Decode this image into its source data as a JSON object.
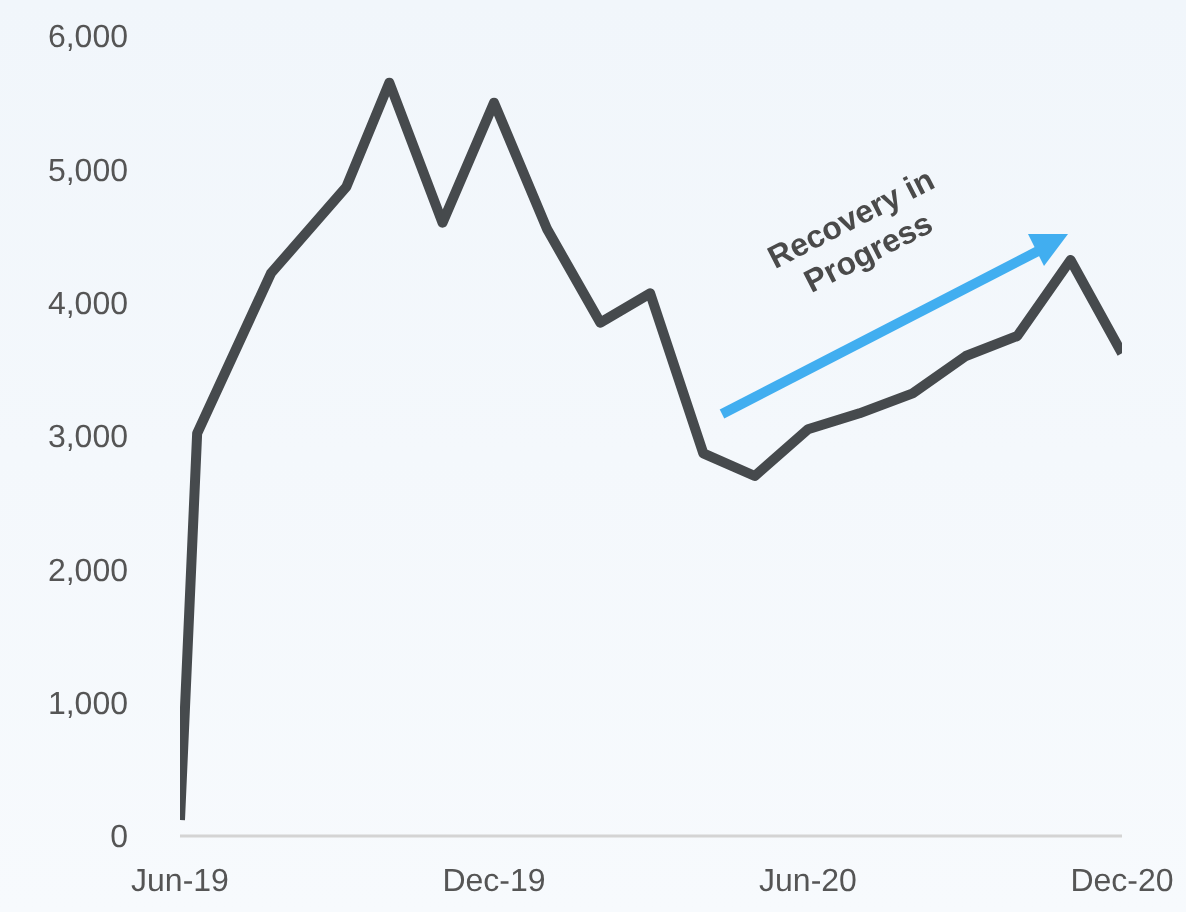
{
  "chart_data": {
    "type": "line",
    "x": [
      "2019-06-01",
      "2019-06-11",
      "2019-07-24",
      "2019-09-06",
      "2019-10-01",
      "2019-11-01",
      "2019-12-01",
      "2020-01-01",
      "2020-02-01",
      "2020-03-01",
      "2020-04-01",
      "2020-05-01",
      "2020-06-01",
      "2020-07-01",
      "2020-08-01",
      "2020-09-01",
      "2020-10-01",
      "2020-11-01",
      "2020-12-01"
    ],
    "series": [
      {
        "color": "#464a4d",
        "values": [
          120,
          3020,
          4220,
          4870,
          5650,
          4600,
          5500,
          4550,
          3850,
          4070,
          2870,
          2700,
          3050,
          3170,
          3320,
          3600,
          3750,
          4320,
          3620
        ]
      }
    ],
    "xlim": [
      "2019-06-01",
      "2020-12-01"
    ],
    "xticks": [
      {
        "value": "2019-06-01",
        "label": "Jun-19"
      },
      {
        "value": "2019-12-01",
        "label": "Dec-19"
      },
      {
        "value": "2020-06-01",
        "label": "Jun-20"
      },
      {
        "value": "2020-12-01",
        "label": "Dec-20"
      }
    ],
    "ylim": [
      0,
      6000
    ],
    "yticks": [
      {
        "value": 0,
        "label": "0"
      },
      {
        "value": 1000,
        "label": "1,000"
      },
      {
        "value": 2000,
        "label": "2,000"
      },
      {
        "value": 3000,
        "label": "3,000"
      },
      {
        "value": 4000,
        "label": "4,000"
      },
      {
        "value": 5000,
        "label": "5,000"
      },
      {
        "value": 6000,
        "label": "6,000"
      }
    ],
    "annotations": [
      "Recovery in\nProgress"
    ]
  }
}
